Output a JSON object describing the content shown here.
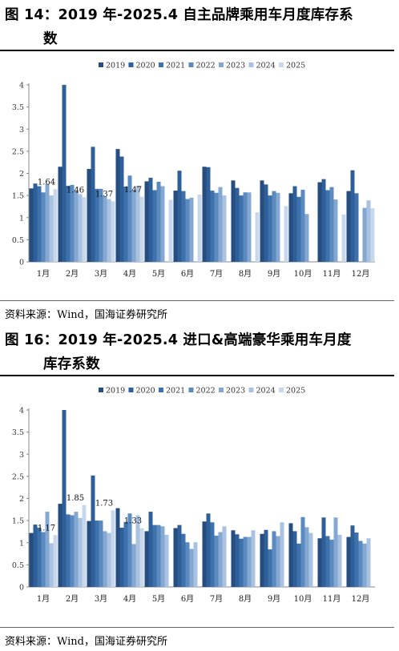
{
  "figures": [
    {
      "title_line1": "图 14：2019 年-2025.4 自主品牌乘用车月度库存系",
      "title_line2": "数",
      "source": "资料来源：Wind，国海证券研究所"
    },
    {
      "title_line1": "图 16：2019 年-2025.4 进口&高端豪华乘用车月度",
      "title_line2": "库存系数",
      "source": "资料来源：Wind，国海证券研究所"
    }
  ],
  "colors": {
    "2019": "#254d80",
    "2020": "#2f5f98",
    "2021": "#3e72ad",
    "2022": "#5b8ac0",
    "2023": "#84a8d2",
    "2024": "#a9c2e1",
    "2025": "#c8d8ec"
  },
  "chart_data": [
    {
      "type": "bar",
      "categories": [
        "1月",
        "2月",
        "3月",
        "4月",
        "5月",
        "6月",
        "7月",
        "8月",
        "9月",
        "10月",
        "11月",
        "12月"
      ],
      "series": [
        {
          "name": "2019",
          "values": [
            1.66,
            2.15,
            2.1,
            2.55,
            1.82,
            1.61,
            2.15,
            1.84,
            1.84,
            1.55,
            1.8,
            1.6
          ]
        },
        {
          "name": "2020",
          "values": [
            1.77,
            4.0,
            2.6,
            2.38,
            1.9,
            2.06,
            2.14,
            1.67,
            1.75,
            1.71,
            1.87,
            2.07
          ]
        },
        {
          "name": "2021",
          "values": [
            1.71,
            1.72,
            1.65,
            1.7,
            1.62,
            1.6,
            1.61,
            1.5,
            1.5,
            1.47,
            1.62,
            1.55
          ]
        },
        {
          "name": "2022",
          "values": [
            1.57,
            1.74,
            1.65,
            1.95,
            1.81,
            1.42,
            1.56,
            1.57,
            1.6,
            1.63,
            1.69,
            null
          ]
        },
        {
          "name": "2023",
          "values": [
            1.76,
            1.6,
            1.48,
            1.62,
            1.71,
            1.45,
            1.69,
            1.57,
            1.56,
            1.08,
            1.41,
            1.22
          ]
        },
        {
          "name": "2024",
          "values": [
            1.5,
            1.53,
            1.42,
            1.72,
            null,
            null,
            1.5,
            null,
            null,
            null,
            null,
            1.39
          ]
        },
        {
          "name": "2025",
          "values": [
            1.64,
            1.46,
            1.37,
            1.47,
            1.4,
            1.52,
            null,
            1.12,
            1.26,
            null,
            1.07,
            1.21
          ]
        }
      ],
      "data_labels": [
        {
          "category": "1月",
          "text": "1.64"
        },
        {
          "category": "2月",
          "text": "1.46"
        },
        {
          "category": "3月",
          "text": "1.37"
        },
        {
          "category": "4月",
          "text": "1.47"
        }
      ],
      "yticks": [
        "0",
        "0.5",
        "1",
        "1.5",
        "2",
        "2.5",
        "3",
        "3.5",
        "4"
      ],
      "ylim": [
        0,
        4
      ],
      "legend_position": "top"
    },
    {
      "type": "bar",
      "categories": [
        "1月",
        "2月",
        "3月",
        "4月",
        "5月",
        "6月",
        "7月",
        "8月",
        "9月",
        "10月",
        "11月",
        "12月"
      ],
      "series": [
        {
          "name": "2019",
          "values": [
            1.22,
            1.88,
            1.49,
            1.78,
            1.26,
            1.33,
            1.48,
            1.28,
            1.2,
            1.44,
            1.1,
            1.13
          ]
        },
        {
          "name": "2020",
          "values": [
            1.41,
            4.0,
            2.52,
            1.34,
            1.7,
            1.4,
            1.66,
            1.19,
            1.29,
            1.26,
            1.57,
            1.39
          ]
        },
        {
          "name": "2021",
          "values": [
            1.34,
            1.64,
            1.5,
            1.47,
            1.4,
            1.2,
            1.46,
            1.09,
            0.85,
            0.98,
            1.15,
            1.23
          ]
        },
        {
          "name": "2022",
          "values": [
            1.24,
            1.62,
            1.5,
            1.66,
            1.4,
            1.01,
            1.16,
            1.13,
            1.26,
            1.58,
            1.07,
            1.04
          ]
        },
        {
          "name": "2023",
          "values": [
            1.7,
            1.7,
            1.26,
            0.97,
            1.37,
            0.86,
            1.24,
            1.13,
            1.15,
            1.35,
            1.57,
            0.98
          ]
        },
        {
          "name": "2024",
          "values": [
            0.99,
            1.56,
            1.22,
            1.62,
            1.18,
            1.01,
            1.37,
            1.28,
            1.46,
            1.22,
            1.18,
            1.1
          ]
        },
        {
          "name": "2025",
          "values": [
            1.17,
            1.85,
            1.73,
            1.33,
            null,
            null,
            null,
            null,
            null,
            null,
            null,
            null
          ]
        }
      ],
      "data_labels": [
        {
          "category": "1月",
          "text": "1.17"
        },
        {
          "category": "2月",
          "text": "1.85"
        },
        {
          "category": "3月",
          "text": "1.73"
        },
        {
          "category": "4月",
          "text": "1.33"
        }
      ],
      "yticks": [
        "0",
        "0.5",
        "1",
        "1.5",
        "2",
        "2.5",
        "3",
        "3.5",
        "4"
      ],
      "ylim": [
        0,
        4
      ],
      "legend_position": "top"
    }
  ]
}
